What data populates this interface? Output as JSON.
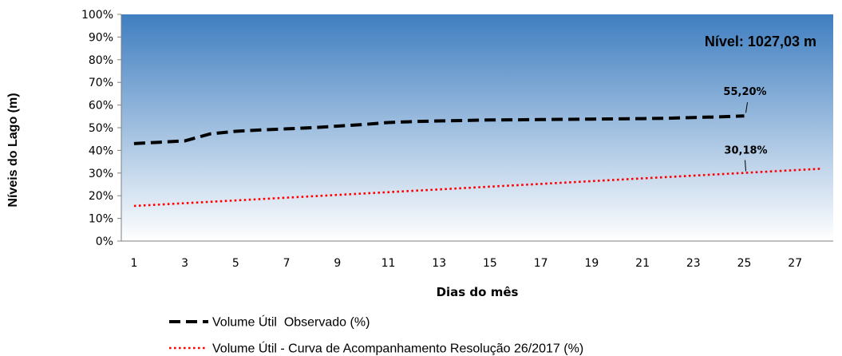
{
  "chart_data": {
    "type": "line",
    "xlabel": "Dias do mês",
    "ylabel": "Níveis do Lago (m)",
    "annotation": "Nível: 1027,03 m",
    "x_ticks": [
      "1",
      "3",
      "5",
      "7",
      "9",
      "11",
      "13",
      "15",
      "17",
      "19",
      "21",
      "23",
      "25",
      "27"
    ],
    "y_ticks": [
      "0%",
      "10%",
      "20%",
      "30%",
      "40%",
      "50%",
      "60%",
      "70%",
      "80%",
      "90%",
      "100%"
    ],
    "xlim": [
      0.5,
      28.5
    ],
    "ylim": [
      0,
      100
    ],
    "grid": false,
    "legend_position": "bottom",
    "series": [
      {
        "name": "Volume Útil  Observado (%)",
        "style": "dashed",
        "color": "#000000",
        "x": [
          1,
          2,
          3,
          4,
          5,
          6,
          7,
          8,
          9,
          10,
          11,
          12,
          13,
          14,
          15,
          16,
          17,
          18,
          19,
          20,
          21,
          22,
          23,
          24,
          25
        ],
        "values": [
          43.0,
          43.6,
          44.2,
          47.3,
          48.4,
          49.0,
          49.5,
          50.0,
          50.7,
          51.4,
          52.3,
          52.7,
          53.0,
          53.2,
          53.4,
          53.5,
          53.6,
          53.7,
          53.8,
          53.9,
          54.0,
          54.2,
          54.5,
          54.8,
          55.2
        ],
        "end_label": "55,20%"
      },
      {
        "name": "Volume Útil - Curva de Acompanhamento Resolução 26/2017 (%)",
        "style": "dotted",
        "color": "#ff0000",
        "x": [
          1,
          28
        ],
        "values": [
          15.5,
          31.9
        ],
        "point_label_x": 25,
        "point_label": "30,18%"
      }
    ],
    "background_gradient": [
      "#3f7ec0",
      "#ffffff"
    ]
  }
}
